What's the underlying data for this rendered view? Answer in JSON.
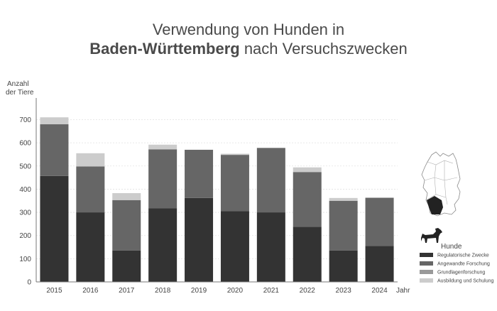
{
  "title": {
    "line1": "Verwendung von Hunden in",
    "line2_bold": "Baden-Württemberg",
    "line2_rest": " nach Versuchszwecken"
  },
  "chart_data": {
    "type": "bar",
    "stacked": true,
    "title": "Verwendung von Hunden in Baden-Württemberg nach Versuchszwecken",
    "ylabel": "Anzahl der Tiere",
    "ylabel_lines": [
      "Anzahl",
      "der Tiere"
    ],
    "xlabel": "Jahr",
    "ylim": [
      0,
      700
    ],
    "yticks": [
      0,
      100,
      200,
      300,
      400,
      500,
      600,
      700
    ],
    "grid": true,
    "categories": [
      "2015",
      "2016",
      "2017",
      "2018",
      "2019",
      "2020",
      "2021",
      "2022",
      "2023",
      "2024"
    ],
    "series": [
      {
        "name": "Regulatorische Zwecke",
        "color": "#333333",
        "values": [
          457,
          300,
          135,
          317,
          362,
          305,
          300,
          238,
          135,
          155
        ]
      },
      {
        "name": "Angewandte Forschung",
        "color": "#666666",
        "values": [
          223,
          198,
          218,
          255,
          208,
          243,
          278,
          236,
          215,
          208
        ]
      },
      {
        "name": "Grundlagenforschung",
        "color": "#999999",
        "values": [
          0,
          0,
          0,
          0,
          0,
          0,
          0,
          0,
          0,
          0
        ]
      },
      {
        "name": "Ausbildung und Schulung",
        "color": "#cccccc",
        "values": [
          30,
          57,
          30,
          20,
          0,
          5,
          0,
          20,
          12,
          0
        ]
      }
    ],
    "legend": {
      "title": "Hunde",
      "placement": "right",
      "icon": "dog-icon",
      "map_icon": "germany-map-icon"
    }
  }
}
